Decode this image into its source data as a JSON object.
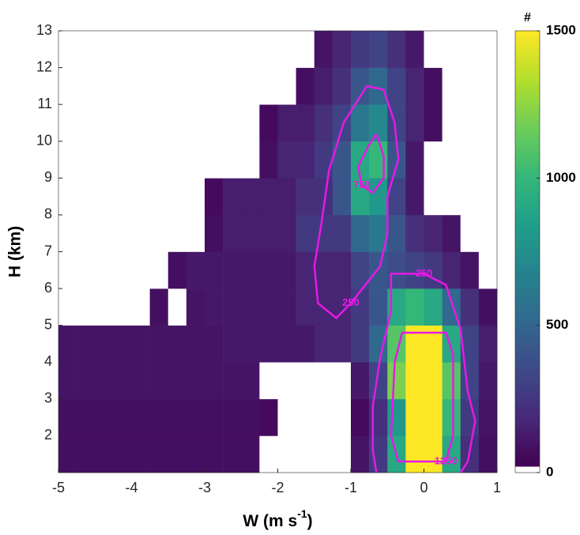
{
  "chart_data": {
    "type": "heatmap",
    "xlabel": "W (m s",
    "xlabel_sup": "-1",
    "xlabel_end": ")",
    "ylabel": "H (km)",
    "colorbar_label": "#",
    "x_edges": [
      -5,
      -4.75,
      -4.5,
      -4.25,
      -4,
      -3.75,
      -3.5,
      -3.25,
      -3,
      -2.75,
      -2.5,
      -2.25,
      -2,
      -1.75,
      -1.5,
      -1.25,
      -1,
      -0.75,
      -0.5,
      -0.25,
      0,
      0.25,
      0.5,
      0.75,
      1
    ],
    "y_edges": [
      1,
      2,
      3,
      4,
      5,
      6,
      7,
      8,
      9,
      10,
      11,
      12,
      13
    ],
    "z": [
      [
        60,
        60,
        60,
        60,
        60,
        60,
        60,
        60,
        60,
        60,
        60,
        0,
        0,
        0,
        0,
        0,
        80,
        250,
        900,
        1800,
        1800,
        900,
        200,
        60
      ],
      [
        60,
        60,
        60,
        60,
        60,
        60,
        60,
        60,
        60,
        60,
        60,
        40,
        0,
        0,
        0,
        0,
        40,
        200,
        800,
        1800,
        1800,
        1000,
        250,
        80
      ],
      [
        80,
        80,
        80,
        80,
        80,
        80,
        80,
        80,
        80,
        80,
        80,
        0,
        0,
        0,
        0,
        0,
        100,
        300,
        1200,
        1800,
        1800,
        1100,
        300,
        100
      ],
      [
        80,
        80,
        80,
        80,
        80,
        80,
        80,
        80,
        80,
        100,
        100,
        100,
        100,
        100,
        150,
        150,
        250,
        500,
        1100,
        1700,
        1700,
        900,
        300,
        120
      ],
      [
        0,
        0,
        0,
        0,
        0,
        60,
        0,
        80,
        100,
        100,
        100,
        100,
        100,
        150,
        150,
        150,
        250,
        400,
        900,
        1000,
        900,
        500,
        200,
        60
      ],
      [
        0,
        0,
        0,
        0,
        0,
        0,
        60,
        100,
        100,
        100,
        100,
        100,
        100,
        150,
        150,
        150,
        300,
        400,
        350,
        300,
        250,
        150,
        80,
        0
      ],
      [
        0,
        0,
        0,
        0,
        0,
        0,
        0,
        0,
        60,
        120,
        120,
        120,
        120,
        250,
        250,
        250,
        500,
        600,
        400,
        200,
        150,
        80,
        0,
        0
      ],
      [
        0,
        0,
        0,
        0,
        0,
        0,
        0,
        0,
        40,
        120,
        120,
        120,
        120,
        200,
        200,
        400,
        900,
        800,
        300,
        100,
        0,
        0,
        0,
        0
      ],
      [
        0,
        0,
        0,
        0,
        0,
        0,
        0,
        0,
        0,
        0,
        0,
        60,
        150,
        150,
        250,
        400,
        900,
        1000,
        400,
        100,
        0,
        0,
        0,
        0
      ],
      [
        0,
        0,
        0,
        0,
        0,
        0,
        0,
        0,
        0,
        0,
        0,
        40,
        120,
        120,
        200,
        300,
        600,
        700,
        300,
        150,
        60,
        0,
        0,
        0
      ],
      [
        0,
        0,
        0,
        0,
        0,
        0,
        0,
        0,
        0,
        0,
        0,
        0,
        0,
        60,
        120,
        200,
        400,
        500,
        300,
        150,
        60,
        0,
        0,
        0
      ],
      [
        0,
        0,
        0,
        0,
        0,
        0,
        0,
        0,
        0,
        0,
        0,
        0,
        0,
        0,
        80,
        150,
        250,
        300,
        200,
        100,
        0,
        0,
        0,
        0
      ]
    ],
    "contours": [
      {
        "level": 250,
        "x": [
          -0.78,
          -0.55,
          -0.4,
          -0.35,
          -0.5,
          -0.5,
          -0.6,
          -0.8,
          -1.0,
          -1.2,
          -1.45,
          -1.5,
          -1.4,
          -1.3,
          -1.1,
          -0.78
        ],
        "y": [
          11.5,
          11.4,
          10.5,
          9.5,
          8.5,
          7.5,
          6.6,
          6.1,
          5.6,
          5.2,
          5.6,
          6.6,
          7.8,
          9.2,
          10.5,
          11.5
        ]
      },
      {
        "level": 250,
        "x": [
          -0.65,
          -0.7,
          -0.7,
          -0.6,
          -0.45,
          -0.45,
          0,
          0.3,
          0.5,
          0.6,
          0.7,
          0.6,
          0.5
        ],
        "y": [
          1.0,
          1.6,
          2.8,
          4.1,
          5.4,
          6.4,
          6.4,
          6.1,
          4.9,
          3.2,
          2.4,
          1.3,
          1.0
        ]
      },
      {
        "level": 750,
        "x": [
          -0.65,
          -0.55,
          -0.55,
          -0.7,
          -0.85,
          -0.9,
          -0.75,
          -0.65
        ],
        "y": [
          10.2,
          9.6,
          9.0,
          8.6,
          8.8,
          9.3,
          9.9,
          10.2
        ]
      },
      {
        "level": 1250,
        "x": [
          -0.3,
          0.3,
          0.4,
          0.4,
          0.3,
          -0.35,
          -0.45,
          -0.4,
          -0.3
        ],
        "y": [
          4.8,
          4.8,
          4.2,
          2.0,
          1.3,
          1.3,
          2.0,
          4.0,
          4.8
        ]
      }
    ],
    "contour_color": "#e619e6",
    "xlim": [
      -5,
      1
    ],
    "xticks": [
      -5,
      -4,
      -3,
      -2,
      -1,
      0,
      1
    ],
    "ylim": [
      1,
      13
    ],
    "yticks": [
      2,
      3,
      4,
      5,
      6,
      7,
      8,
      9,
      10,
      11,
      12,
      13
    ],
    "clim": [
      0,
      1500
    ],
    "cticks": [
      0,
      500,
      1000,
      1500
    ],
    "colormap": "viridis"
  }
}
